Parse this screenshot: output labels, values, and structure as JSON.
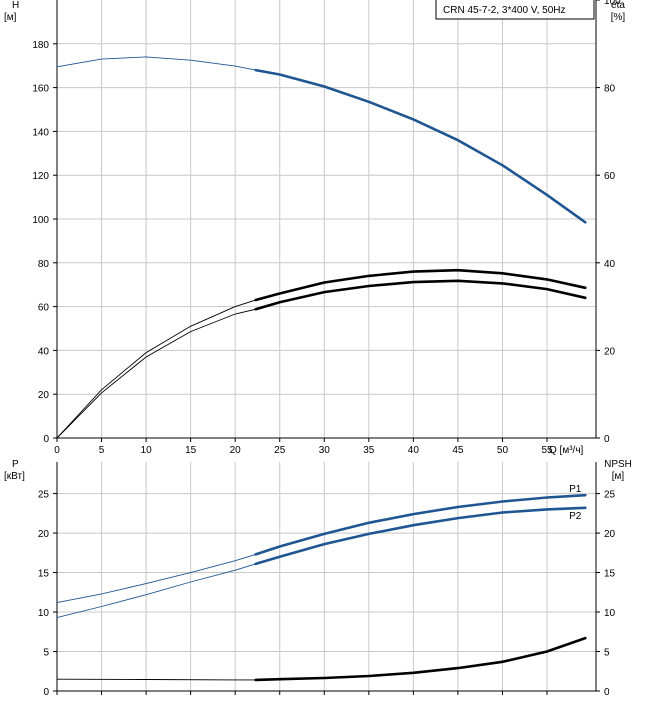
{
  "legend_box": {
    "label": "CRN 45-7-2, 3*400 V, 50Hz"
  },
  "chart_data": [
    {
      "type": "line",
      "panel": "top",
      "left_axis": {
        "label": "H",
        "unit": "[м]",
        "ylim": [
          0,
          200
        ],
        "ticks": [
          0,
          20,
          40,
          60,
          80,
          100,
          120,
          140,
          160,
          180
        ]
      },
      "right_axis": {
        "label": "eta",
        "unit": "[%]",
        "ylim": [
          0,
          100
        ],
        "ticks": [
          0,
          20,
          40,
          60,
          80,
          100
        ]
      },
      "x_axis": {
        "label": "Q [м³/ч]",
        "xlim": [
          0,
          60.5
        ],
        "ticks": [
          0,
          5,
          10,
          15,
          20,
          25,
          30,
          35,
          40,
          45,
          50,
          55
        ]
      },
      "grid": true,
      "series": [
        {
          "axis": "left",
          "color": "#1f5591",
          "duty_start": 22.3,
          "x": [
            0,
            5,
            10,
            15,
            20,
            22.3,
            25,
            30,
            35,
            40,
            45,
            50,
            55,
            59.3
          ],
          "y": [
            169.5,
            173,
            174,
            172.5,
            169.8,
            168,
            166,
            160.5,
            153.5,
            145.5,
            136,
            124.5,
            111,
            98.5
          ]
        },
        {
          "axis": "right",
          "color": "#000000",
          "duty_start": 22.3,
          "x": [
            0,
            5,
            10,
            15,
            20,
            22.3,
            25,
            30,
            35,
            40,
            45,
            50,
            55,
            59.3
          ],
          "y": [
            0,
            11,
            19.5,
            25.5,
            30,
            31.5,
            33,
            35.5,
            37,
            38,
            38.3,
            37.6,
            36.2,
            34.3
          ]
        },
        {
          "axis": "right",
          "color": "#000000",
          "duty_start": 22.3,
          "x": [
            0,
            5,
            10,
            15,
            20,
            22.3,
            25,
            30,
            35,
            40,
            45,
            50,
            55,
            59.3
          ],
          "y": [
            0,
            10.3,
            18.5,
            24.3,
            28.3,
            29.4,
            31,
            33.3,
            34.7,
            35.6,
            35.9,
            35.3,
            34,
            32
          ]
        }
      ]
    },
    {
      "type": "line",
      "panel": "bottom",
      "left_axis": {
        "label": "P",
        "unit": "[кВт]",
        "ylim": [
          0,
          29
        ],
        "ticks": [
          0,
          5,
          10,
          15,
          20,
          25
        ]
      },
      "right_axis": {
        "label": "NPSH",
        "unit": "[м]",
        "ylim": [
          0,
          29
        ],
        "ticks": [
          0,
          5,
          10,
          15,
          20,
          25
        ]
      },
      "x_axis": {
        "xlim": [
          0,
          60.5
        ],
        "ticks": [
          0,
          5,
          10,
          15,
          20,
          25,
          30,
          35,
          40,
          45,
          50,
          55
        ]
      },
      "grid": true,
      "series": [
        {
          "name": "P1",
          "axis": "left",
          "color": "#1f5591",
          "duty_start": 22.3,
          "x": [
            0,
            5,
            10,
            15,
            20,
            22.3,
            25,
            30,
            35,
            40,
            45,
            50,
            55,
            59.3
          ],
          "y": [
            11.2,
            12.3,
            13.6,
            15,
            16.5,
            17.3,
            18.3,
            19.9,
            21.3,
            22.4,
            23.3,
            24,
            24.5,
            24.8
          ]
        },
        {
          "name": "P2",
          "axis": "left",
          "color": "#1f5591",
          "duty_start": 22.3,
          "x": [
            0,
            5,
            10,
            15,
            20,
            22.3,
            25,
            30,
            35,
            40,
            45,
            50,
            55,
            59.3
          ],
          "y": [
            9.3,
            10.7,
            12.2,
            13.8,
            15.3,
            16.1,
            17,
            18.6,
            19.9,
            21,
            21.9,
            22.6,
            23,
            23.2
          ]
        },
        {
          "axis": "right",
          "color": "#000000",
          "duty_start": 22.3,
          "x": [
            0,
            10,
            20,
            22.3,
            25,
            30,
            35,
            40,
            45,
            50,
            55,
            59.3
          ],
          "y": [
            1.5,
            1.45,
            1.4,
            1.4,
            1.5,
            1.65,
            1.9,
            2.3,
            2.9,
            3.7,
            5,
            6.7
          ]
        }
      ]
    }
  ]
}
